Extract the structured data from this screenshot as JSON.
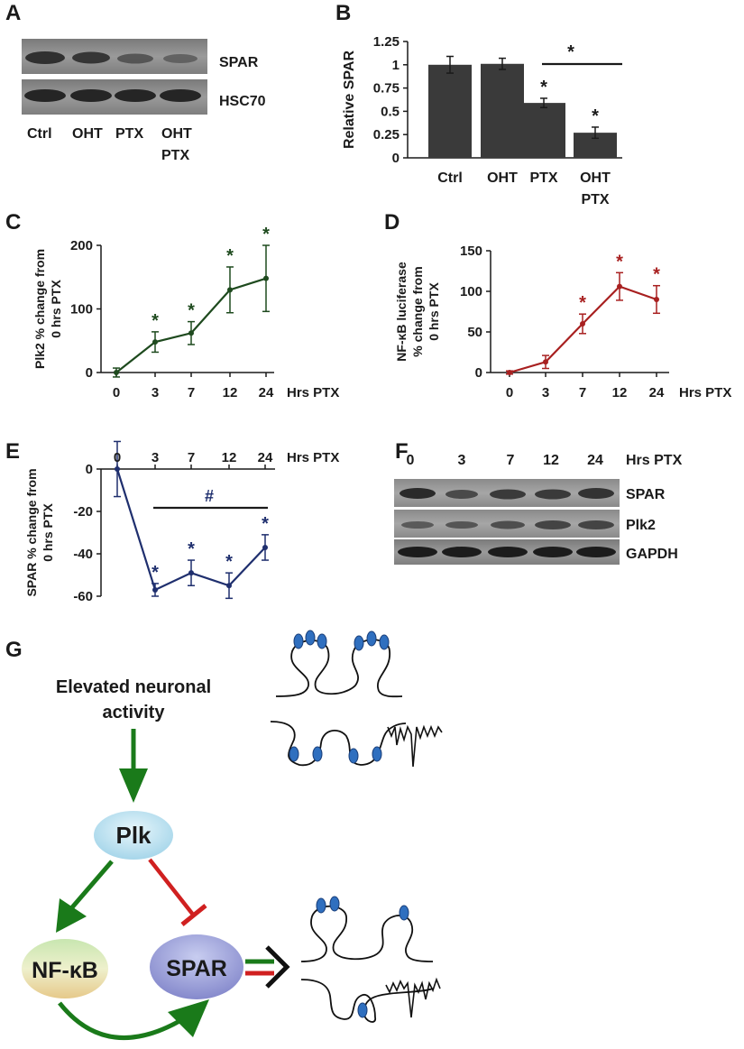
{
  "panels": {
    "A": "A",
    "B": "B",
    "C": "C",
    "D": "D",
    "E": "E",
    "F": "F",
    "G": "G"
  },
  "panel_a": {
    "bands": [
      "SPAR",
      "HSC70"
    ],
    "lanes": [
      "Ctrl",
      "OHT",
      "PTX",
      "OHT",
      "PTX"
    ]
  },
  "panel_f": {
    "lanes": [
      "0",
      "3",
      "7",
      "12",
      "24"
    ],
    "unit": "Hrs PTX",
    "bands": [
      "SPAR",
      "Plk2",
      "GAPDH"
    ]
  },
  "panel_g": {
    "input_line1": "Elevated neuronal",
    "input_line2": "activity",
    "plk": "Plk",
    "nfkb": "NF-κB",
    "spar": "SPAR"
  },
  "colors": {
    "bar": "#3a3a3a",
    "green": "#1e4a1e",
    "red": "#a82020",
    "blue": "#1f2f6e",
    "arrow_green": "#1a7a1a",
    "arrow_red": "#d02020",
    "spine_blue": "#2f6fbf"
  },
  "chart_data": [
    {
      "type": "bar",
      "categories": [
        "Ctrl",
        "OHT",
        "PTX",
        "OHT PTX"
      ],
      "values": [
        1.0,
        1.01,
        0.59,
        0.27
      ],
      "errors": [
        0.09,
        0.06,
        0.05,
        0.06
      ],
      "ylabel": "Relative SPAR",
      "ylim": [
        0,
        1.25
      ],
      "yticks": [
        "0",
        "0.25",
        "0.5",
        "0.75",
        "1",
        "1.25"
      ],
      "xlabels": [
        [
          "Ctrl"
        ],
        [
          "OHT"
        ],
        [
          "PTX"
        ],
        [
          "OHT",
          "PTX"
        ]
      ],
      "significance": [
        "",
        "",
        "*",
        "*"
      ],
      "bracket_star": "*",
      "color": "#3a3a3a"
    },
    {
      "type": "line",
      "x": [
        "0",
        "3",
        "7",
        "12",
        "24"
      ],
      "values": [
        0,
        48,
        62,
        130,
        148
      ],
      "errors": [
        7,
        16,
        18,
        36,
        52
      ],
      "significance": [
        "",
        "*",
        "*",
        "*",
        "*"
      ],
      "ylabel": [
        "Plk2 % change from",
        "0 hrs PTX"
      ],
      "xlabel": "Hrs PTX",
      "ylim": [
        0,
        200
      ],
      "yticks": [
        "0",
        "100",
        "200"
      ],
      "color": "#1e4a1e"
    },
    {
      "type": "line",
      "x": [
        "0",
        "3",
        "7",
        "12",
        "24"
      ],
      "values": [
        0,
        13,
        60,
        106,
        90
      ],
      "errors": [
        2,
        8,
        12,
        17,
        17
      ],
      "significance": [
        "",
        "",
        "*",
        "*",
        "*"
      ],
      "ylabel": [
        "NF-κB luciferase",
        "% change from",
        "0 hrs PTX"
      ],
      "xlabel": "Hrs PTX",
      "ylim": [
        0,
        150
      ],
      "yticks": [
        "0",
        "50",
        "100",
        "150"
      ],
      "color": "#a82020"
    },
    {
      "type": "line",
      "x": [
        "0",
        "3",
        "7",
        "12",
        "24"
      ],
      "values": [
        0,
        -57,
        -49,
        -55,
        -37
      ],
      "errors": [
        13,
        3,
        6,
        6,
        6
      ],
      "significance": [
        "",
        "*",
        "*",
        "*",
        "*"
      ],
      "bracket_mark": "#",
      "ylabel": [
        "SPAR % change from",
        "0 hrs PTX"
      ],
      "xlabel": "Hrs PTX",
      "ylim": [
        -60,
        0
      ],
      "yticks": [
        "0",
        "-20",
        "-40",
        "-60"
      ],
      "color": "#1f2f6e"
    }
  ]
}
